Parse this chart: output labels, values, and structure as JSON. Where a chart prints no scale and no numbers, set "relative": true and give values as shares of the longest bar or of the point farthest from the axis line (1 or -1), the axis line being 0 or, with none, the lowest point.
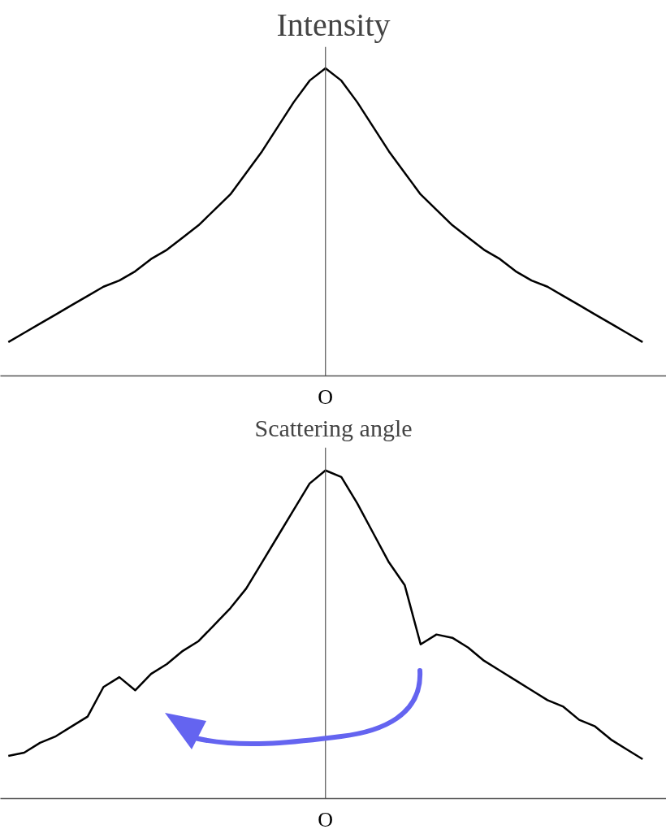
{
  "chart_data": [
    {
      "type": "line",
      "relative": true,
      "ylabel": "Intensity",
      "xlabel": "Scattering angle",
      "color": "#000000",
      "annotations": [
        "O"
      ],
      "categories": [
        null,
        null,
        null,
        null,
        null,
        null,
        null,
        null,
        null,
        null,
        null,
        null,
        null,
        null,
        null,
        null,
        null,
        null,
        null,
        null,
        null,
        null,
        null,
        null,
        null,
        null,
        null,
        null,
        null,
        null,
        null,
        null,
        null,
        null,
        null,
        null,
        null,
        null,
        null,
        null,
        null
      ],
      "values": [
        0.11,
        0.14,
        0.17,
        0.2,
        0.23,
        0.26,
        0.29,
        0.31,
        0.34,
        0.38,
        0.41,
        0.45,
        0.49,
        0.54,
        0.59,
        0.66,
        0.73,
        0.81,
        0.89,
        0.96,
        1.0,
        0.96,
        0.89,
        0.81,
        0.73,
        0.66,
        0.59,
        0.54,
        0.49,
        0.45,
        0.41,
        0.38,
        0.34,
        0.31,
        0.29,
        0.26,
        0.23,
        0.2,
        0.17,
        0.14,
        0.11
      ]
    },
    {
      "type": "line",
      "relative": true,
      "color": "#000000",
      "annotations": [
        "O"
      ],
      "categories": [
        null,
        null,
        null,
        null,
        null,
        null,
        null,
        null,
        null,
        null,
        null,
        null,
        null,
        null,
        null,
        null,
        null,
        null,
        null,
        null,
        null,
        null,
        null,
        null,
        null,
        null,
        null,
        null,
        null,
        null,
        null,
        null,
        null,
        null,
        null,
        null,
        null,
        null,
        null,
        null,
        null
      ],
      "values": [
        0.13,
        0.14,
        0.17,
        0.19,
        0.22,
        0.25,
        0.34,
        0.37,
        0.33,
        0.38,
        0.41,
        0.45,
        0.48,
        0.53,
        0.58,
        0.64,
        0.72,
        0.8,
        0.88,
        0.96,
        1.0,
        0.98,
        0.9,
        0.81,
        0.72,
        0.65,
        0.47,
        0.5,
        0.49,
        0.46,
        0.42,
        0.39,
        0.36,
        0.33,
        0.3,
        0.28,
        0.24,
        0.22,
        0.18,
        0.15,
        0.12
      ]
    }
  ]
}
